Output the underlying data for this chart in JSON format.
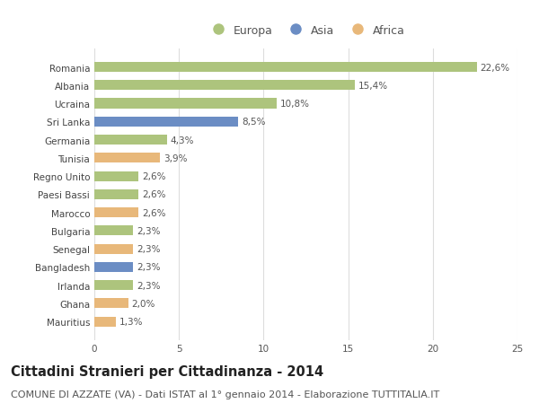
{
  "countries": [
    "Romania",
    "Albania",
    "Ucraina",
    "Sri Lanka",
    "Germania",
    "Tunisia",
    "Regno Unito",
    "Paesi Bassi",
    "Marocco",
    "Bulgaria",
    "Senegal",
    "Bangladesh",
    "Irlanda",
    "Ghana",
    "Mauritius"
  ],
  "values": [
    22.6,
    15.4,
    10.8,
    8.5,
    4.3,
    3.9,
    2.6,
    2.6,
    2.6,
    2.3,
    2.3,
    2.3,
    2.3,
    2.0,
    1.3
  ],
  "labels": [
    "22,6%",
    "15,4%",
    "10,8%",
    "8,5%",
    "4,3%",
    "3,9%",
    "2,6%",
    "2,6%",
    "2,6%",
    "2,3%",
    "2,3%",
    "2,3%",
    "2,3%",
    "2,0%",
    "1,3%"
  ],
  "continents": [
    "Europa",
    "Europa",
    "Europa",
    "Asia",
    "Europa",
    "Africa",
    "Europa",
    "Europa",
    "Africa",
    "Europa",
    "Africa",
    "Asia",
    "Europa",
    "Africa",
    "Africa"
  ],
  "colors": {
    "Europa": "#adc47d",
    "Asia": "#6b8dc4",
    "Africa": "#e8b87a"
  },
  "xlim": [
    0,
    25
  ],
  "xticks": [
    0,
    5,
    10,
    15,
    20,
    25
  ],
  "title": "Cittadini Stranieri per Cittadinanza - 2014",
  "subtitle": "COMUNE DI AZZATE (VA) - Dati ISTAT al 1° gennaio 2014 - Elaborazione TUTTITALIA.IT",
  "background_color": "#ffffff",
  "grid_color": "#dddddd",
  "bar_height": 0.55,
  "title_fontsize": 10.5,
  "subtitle_fontsize": 8,
  "label_fontsize": 7.5,
  "tick_fontsize": 7.5,
  "legend_fontsize": 9
}
